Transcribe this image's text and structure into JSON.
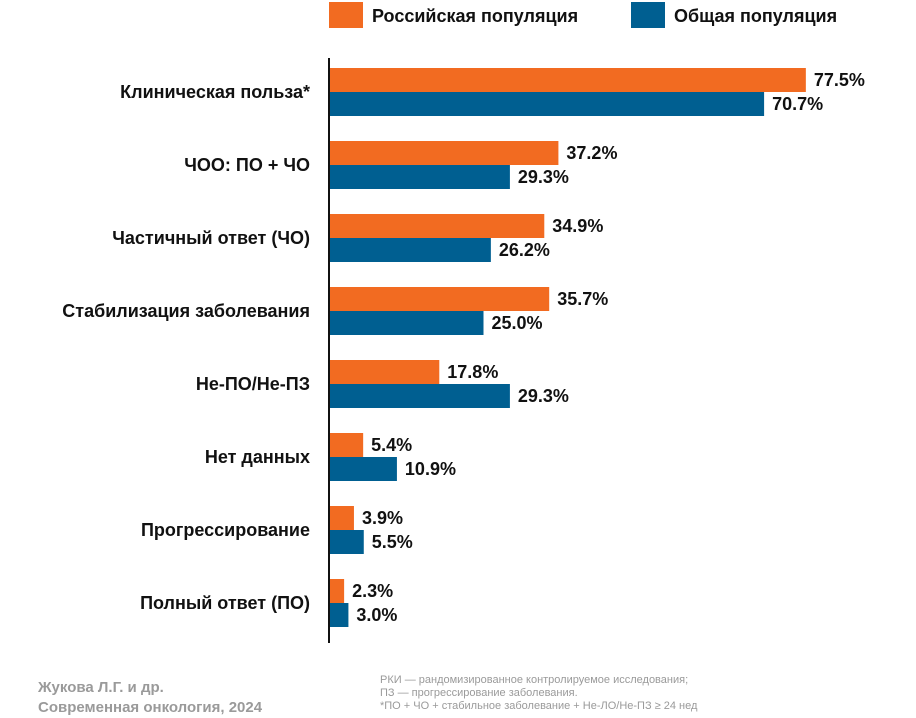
{
  "chart_data": {
    "type": "bar",
    "orientation": "horizontal",
    "categories": [
      "Клиническая польза*",
      "ЧОО: ПО + ЧО",
      "Частичный ответ (ЧО)",
      "Стабилизация заболевания",
      "Не-ПО/Не-ПЗ",
      "Нет данных",
      "Прогрессирование",
      "Полный ответ (ПО)"
    ],
    "series": [
      {
        "name": "Российская популяция",
        "color": "#f26b21",
        "values": [
          77.5,
          37.2,
          34.9,
          35.7,
          17.8,
          5.4,
          3.9,
          2.3
        ],
        "labels": [
          "77.5%",
          "37.2%",
          "34.9%",
          "35.7%",
          "17.8%",
          "5.4%",
          "3.9%",
          "2.3%"
        ]
      },
      {
        "name": "Общая популяция",
        "color": "#005f91",
        "values": [
          70.7,
          29.3,
          26.2,
          25.0,
          29.3,
          10.9,
          5.5,
          3.0
        ],
        "labels": [
          "70.7%",
          "29.3%",
          "26.2%",
          "25.0%",
          "29.3%",
          "10.9%",
          "5.5%",
          "3.0%"
        ]
      }
    ],
    "xlim": [
      0,
      100
    ],
    "grid": false,
    "legend_position": "top"
  },
  "footer": {
    "source_line1": "Жукова Л.Г. и др.",
    "source_line2": "Современная онкология, 2024",
    "note_line1": "РКИ — рандомизированное контролируемое исследования;",
    "note_line2": "ПЗ — прогрессирование заболевания.",
    "note_line3": "*ПО + ЧО + стабильное заболевание + Не-ЛО/Не-ПЗ ≥ 24 нед"
  }
}
